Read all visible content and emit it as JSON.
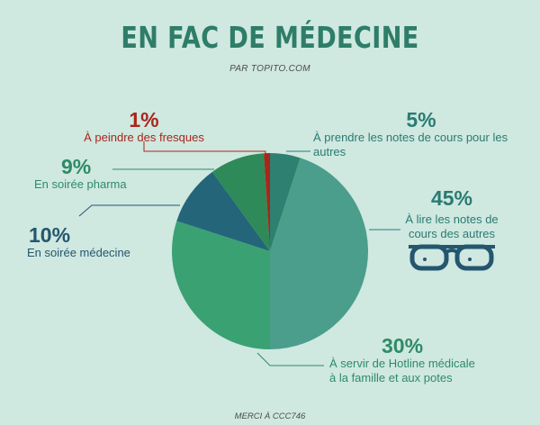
{
  "title": "EN FAC DE MÉDECINE",
  "subtitle": "PAR TOPITO.COM",
  "footer": "MERCI À CCC746",
  "colors": {
    "background": "#cfe8e0",
    "title": "#2e7d68",
    "lire_notes": "#4a9e8b",
    "hotline": "#3aa173",
    "soiree_medecine": "#24657a",
    "soiree_pharma": "#2e8a58",
    "fresques": "#a8261b",
    "prendre_notes": "#2e8070"
  },
  "icon": "glasses-icon",
  "chart_data": {
    "type": "pie",
    "slices": [
      {
        "key": "prendre_notes",
        "value": 5,
        "pct_label": "5%",
        "label": "À prendre les notes de cours pour les autres"
      },
      {
        "key": "lire_notes",
        "value": 45,
        "pct_label": "45%",
        "label": "À lire les notes de cours des autres"
      },
      {
        "key": "hotline",
        "value": 30,
        "pct_label": "30%",
        "label": "À servir de Hotline médicale à la famille et aux potes"
      },
      {
        "key": "soiree_medecine",
        "value": 10,
        "pct_label": "10%",
        "label": "En soirée médecine"
      },
      {
        "key": "soiree_pharma",
        "value": 9,
        "pct_label": "9%",
        "label": "En soirée pharma"
      },
      {
        "key": "fresques",
        "value": 1,
        "pct_label": "1%",
        "label": "À peindre des fresques"
      }
    ]
  }
}
